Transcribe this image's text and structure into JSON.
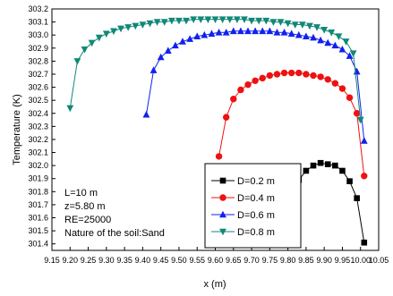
{
  "chart_data": {
    "type": "line",
    "xlabel": "x (m)",
    "ylabel": "Temperature (K)",
    "xlim": [
      9.15,
      10.05
    ],
    "ylim": [
      301.35,
      303.2
    ],
    "xticks": [
      "9.15",
      "9.20",
      "9.25",
      "9.30",
      "9.35",
      "9.40",
      "9.45",
      "9.50",
      "9.55",
      "9.60",
      "9.65",
      "9.70",
      "9.75",
      "9.80",
      "9.85",
      "9.90",
      "9.95",
      "10.00",
      "10.05"
    ],
    "yticks": [
      "301.4",
      "301.5",
      "301.6",
      "301.7",
      "301.8",
      "301.9",
      "302.0",
      "302.1",
      "302.2",
      "302.3",
      "302.4",
      "302.5",
      "302.6",
      "302.7",
      "302.8",
      "302.9",
      "303.0",
      "303.1",
      "303.2"
    ],
    "legend_position": "bottom-right",
    "annotations": [
      "L=10 m",
      "z=5.80 m",
      "RE=25000",
      "Nature of the soil:Sand"
    ],
    "series": [
      {
        "name": "D=0.2 m",
        "color": "#000000",
        "marker": "square",
        "x": [
          9.79,
          9.81,
          9.83,
          9.85,
          9.87,
          9.89,
          9.91,
          9.93,
          9.95,
          9.97,
          9.99,
          10.01
        ],
        "y": [
          301.48,
          301.73,
          301.89,
          301.96,
          302.0,
          302.02,
          302.01,
          302.0,
          301.96,
          301.88,
          301.75,
          301.41
        ]
      },
      {
        "name": "D=0.4 m",
        "color": "#ee1111",
        "marker": "circle",
        "x": [
          9.61,
          9.63,
          9.65,
          9.67,
          9.69,
          9.71,
          9.73,
          9.75,
          9.77,
          9.79,
          9.81,
          9.83,
          9.85,
          9.87,
          9.89,
          9.91,
          9.93,
          9.95,
          9.97,
          9.99,
          10.01
        ],
        "y": [
          302.07,
          302.37,
          302.51,
          302.58,
          302.62,
          302.65,
          302.67,
          302.69,
          302.7,
          302.71,
          302.71,
          302.71,
          302.7,
          302.69,
          302.68,
          302.66,
          302.63,
          302.59,
          302.52,
          302.4,
          301.92
        ]
      },
      {
        "name": "D=0.6 m",
        "color": "#1122ee",
        "marker": "triangle-up",
        "x": [
          9.41,
          9.43,
          9.45,
          9.47,
          9.49,
          9.51,
          9.53,
          9.55,
          9.57,
          9.59,
          9.61,
          9.63,
          9.65,
          9.67,
          9.69,
          9.71,
          9.73,
          9.75,
          9.77,
          9.79,
          9.81,
          9.83,
          9.85,
          9.87,
          9.89,
          9.91,
          9.93,
          9.95,
          9.97,
          9.99,
          10.01
        ],
        "y": [
          302.39,
          302.73,
          302.83,
          302.88,
          302.92,
          302.95,
          302.97,
          302.99,
          303.0,
          303.01,
          303.02,
          303.02,
          303.03,
          303.03,
          303.03,
          303.03,
          303.03,
          303.03,
          303.02,
          303.02,
          303.01,
          303.0,
          302.99,
          302.98,
          302.96,
          302.94,
          302.92,
          302.89,
          302.84,
          302.72,
          302.19
        ]
      },
      {
        "name": "D=0.8 m",
        "color": "#118877",
        "marker": "triangle-down",
        "x": [
          9.2,
          9.22,
          9.24,
          9.26,
          9.28,
          9.3,
          9.32,
          9.34,
          9.36,
          9.38,
          9.4,
          9.42,
          9.44,
          9.46,
          9.48,
          9.5,
          9.52,
          9.54,
          9.56,
          9.58,
          9.6,
          9.62,
          9.64,
          9.66,
          9.68,
          9.7,
          9.72,
          9.74,
          9.76,
          9.78,
          9.8,
          9.82,
          9.84,
          9.86,
          9.88,
          9.9,
          9.92,
          9.94,
          9.96,
          9.98,
          10.0
        ],
        "y": [
          302.44,
          302.8,
          302.89,
          302.94,
          302.98,
          303.01,
          303.03,
          303.05,
          303.06,
          303.07,
          303.08,
          303.09,
          303.1,
          303.1,
          303.11,
          303.11,
          303.11,
          303.12,
          303.12,
          303.12,
          303.12,
          303.12,
          303.12,
          303.12,
          303.12,
          303.11,
          303.11,
          303.11,
          303.1,
          303.1,
          303.09,
          303.08,
          303.08,
          303.07,
          303.06,
          303.04,
          303.02,
          302.99,
          302.95,
          302.86,
          302.35
        ]
      }
    ]
  }
}
